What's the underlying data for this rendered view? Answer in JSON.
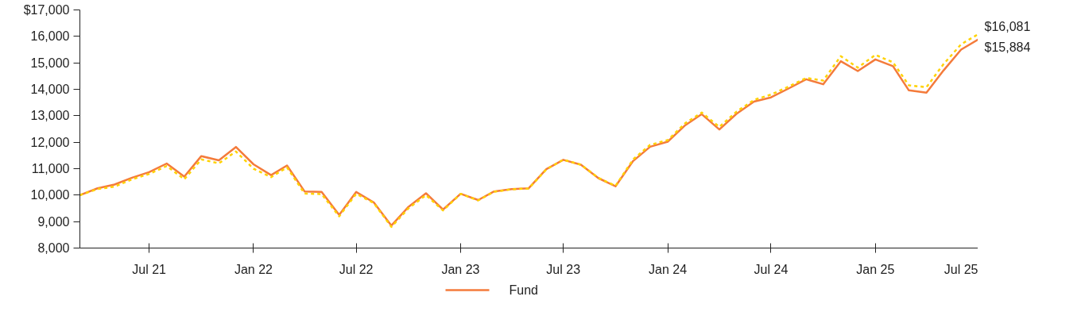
{
  "chart_data": {
    "type": "line",
    "x": [
      "2021-03",
      "2021-04",
      "2021-05",
      "2021-06",
      "2021-07",
      "2021-08",
      "2021-09",
      "2021-10",
      "2021-11",
      "2021-12",
      "2022-01",
      "2022-02",
      "2022-03",
      "2022-04",
      "2022-05",
      "2022-06",
      "2022-07",
      "2022-08",
      "2022-09",
      "2022-10",
      "2022-11",
      "2022-12",
      "2023-01",
      "2023-02",
      "2023-03",
      "2023-04",
      "2023-05",
      "2023-06",
      "2023-07",
      "2023-08",
      "2023-09",
      "2023-10",
      "2023-11",
      "2023-12",
      "2024-01",
      "2024-02",
      "2024-03",
      "2024-04",
      "2024-05",
      "2024-06",
      "2024-07",
      "2024-08",
      "2024-09",
      "2024-10",
      "2024-11",
      "2024-12",
      "2025-01",
      "2025-02",
      "2025-03",
      "2025-04",
      "2025-05",
      "2025-06",
      "2025-07"
    ],
    "series": [
      {
        "name": "Fund",
        "color": "#f47b3b",
        "line_style": "solid",
        "values": [
          10000,
          10258,
          10400,
          10660,
          10870,
          11195,
          10700,
          11475,
          11315,
          11820,
          11165,
          10755,
          11120,
          10140,
          10120,
          9255,
          10120,
          9725,
          8850,
          9555,
          10070,
          9455,
          10050,
          9815,
          10140,
          10230,
          10260,
          10980,
          11335,
          11150,
          10640,
          10335,
          11290,
          11830,
          12020,
          12645,
          13060,
          12480,
          13070,
          13535,
          13695,
          14030,
          14380,
          14190,
          15060,
          14690,
          15130,
          14875,
          13960,
          13870,
          14710,
          15500,
          15884
        ]
      },
      {
        "color": "#ffd200",
        "line_style": "dashed",
        "values": [
          10000,
          10230,
          10320,
          10600,
          10800,
          11100,
          10600,
          11350,
          11200,
          11650,
          11000,
          10680,
          11050,
          10060,
          10040,
          9200,
          10050,
          9700,
          8800,
          9500,
          10000,
          9420,
          10050,
          9800,
          10130,
          10220,
          10250,
          10970,
          11340,
          11150,
          10650,
          10350,
          11350,
          11900,
          12080,
          12720,
          13120,
          12580,
          13150,
          13600,
          13800,
          14100,
          14430,
          14330,
          15250,
          14820,
          15300,
          15020,
          14150,
          14080,
          14950,
          15700,
          16081
        ]
      }
    ],
    "xlim": [
      "2021-03",
      "2025-07"
    ],
    "xticks": [
      {
        "value": "2021-07",
        "label": "Jul 21"
      },
      {
        "value": "2022-01",
        "label": "Jan 22"
      },
      {
        "value": "2022-07",
        "label": "Jul 22"
      },
      {
        "value": "2023-01",
        "label": "Jan 23"
      },
      {
        "value": "2023-07",
        "label": "Jul 23"
      },
      {
        "value": "2024-01",
        "label": "Jan 24"
      },
      {
        "value": "2024-07",
        "label": "Jul 24"
      },
      {
        "value": "2025-01",
        "label": "Jan 25"
      },
      {
        "value": "2025-07",
        "label": "Jul 25"
      }
    ],
    "ylim": [
      8000,
      17000
    ],
    "yticks": [
      {
        "value": 8000,
        "label": "8,000"
      },
      {
        "value": 9000,
        "label": "9,000"
      },
      {
        "value": 10000,
        "label": "10,000"
      },
      {
        "value": 11000,
        "label": "11,000"
      },
      {
        "value": 12000,
        "label": "12,000"
      },
      {
        "value": 13000,
        "label": "13,000"
      },
      {
        "value": 14000,
        "label": "14,000"
      },
      {
        "value": 15000,
        "label": "15,000"
      },
      {
        "value": 16000,
        "label": "16,000"
      },
      {
        "value": 17000,
        "label": "$17,000"
      }
    ],
    "annotations": [
      {
        "text": "$16,081",
        "x": "2025-07",
        "y": 16081
      },
      {
        "text": "$15,884",
        "x": "2025-07",
        "y": 15884
      }
    ],
    "grid": false,
    "legend": "bottom"
  }
}
